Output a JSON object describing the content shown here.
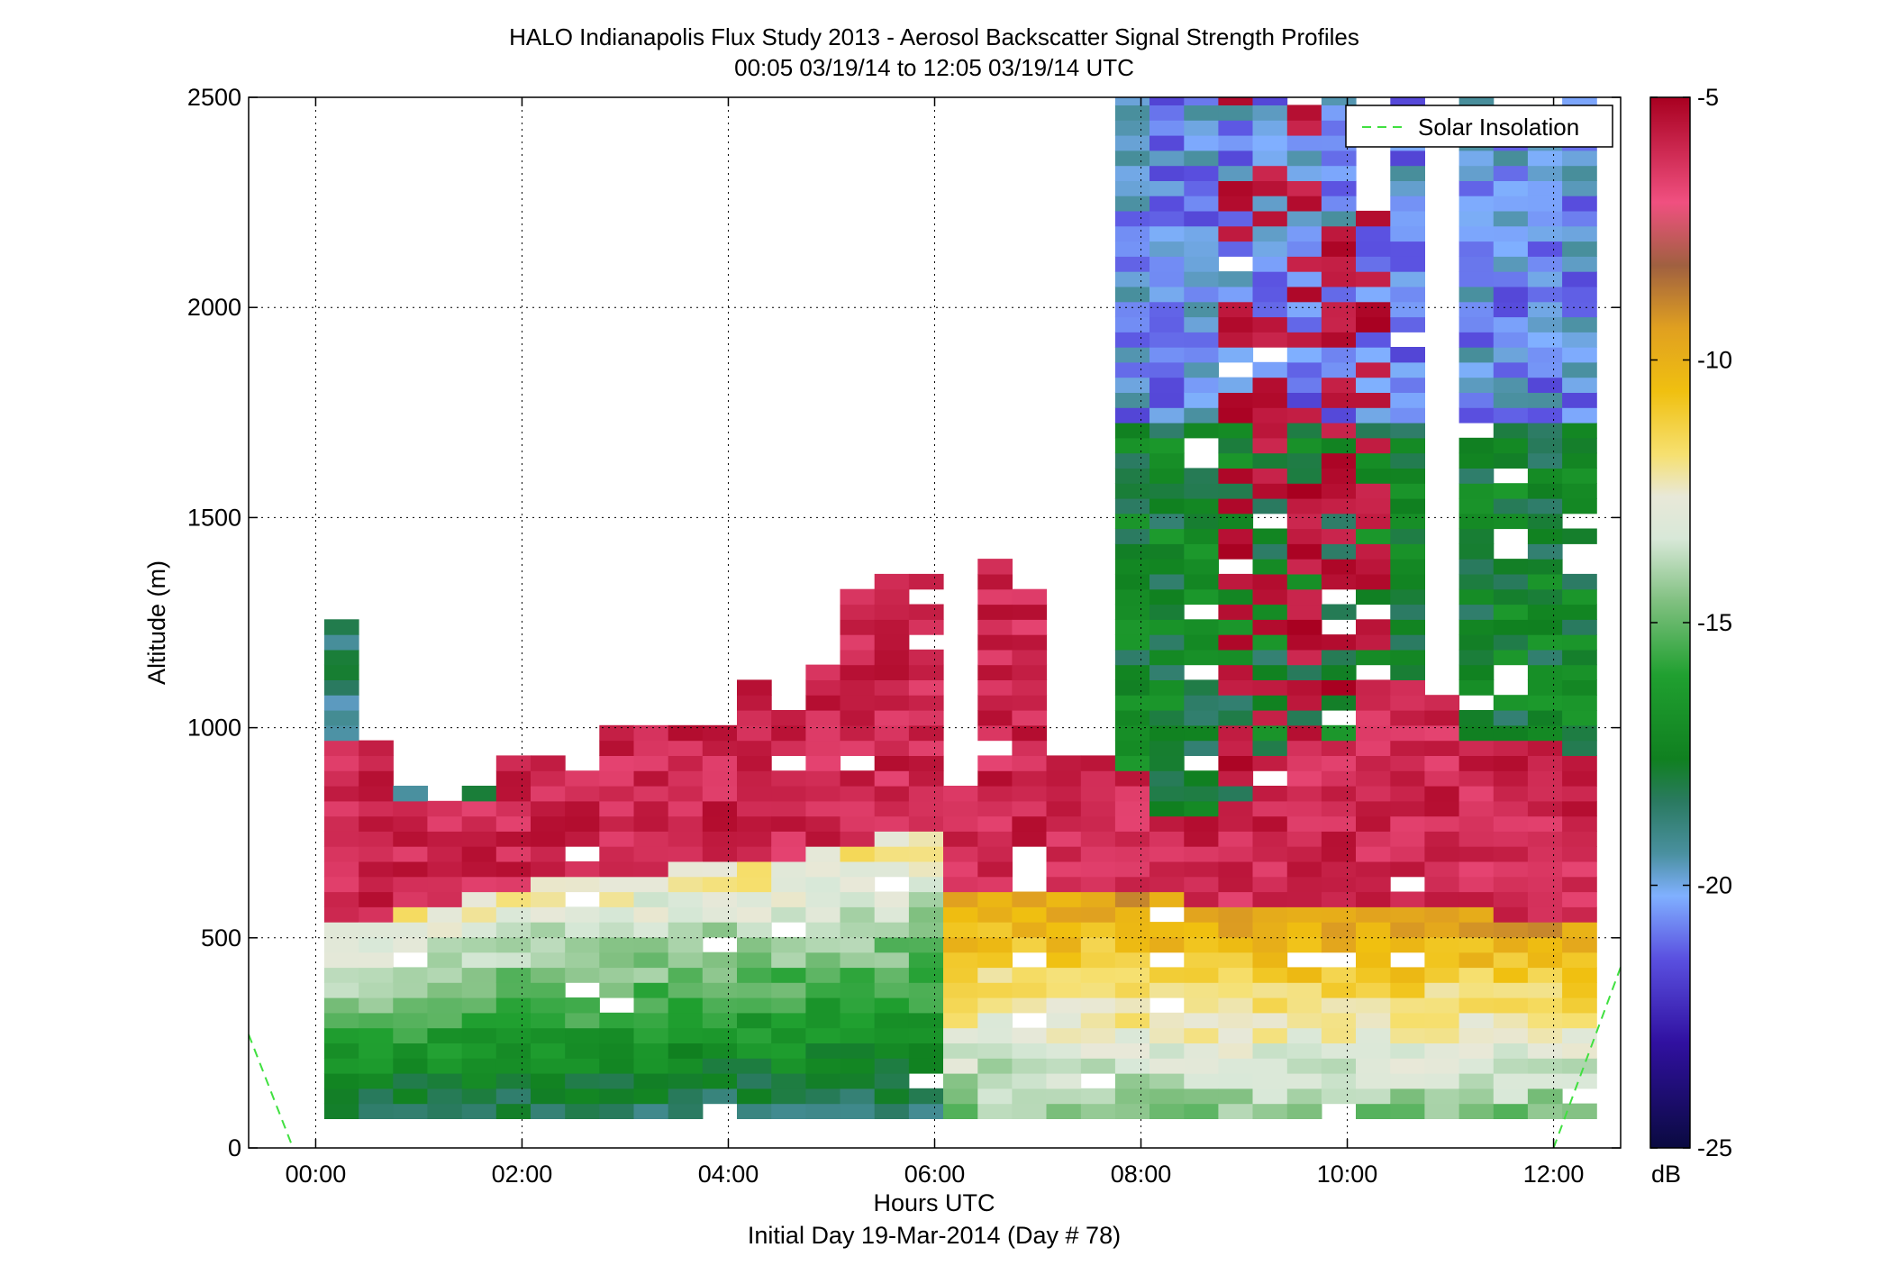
{
  "chart_data": {
    "type": "heatmap",
    "title": "HALO Indianapolis Flux Study 2013 - Aerosol Backscatter Signal Strength Profiles",
    "subtitle": "00:05 03/19/14 to 12:05 03/19/14  UTC",
    "xlabel": "Hours UTC",
    "xlabel_sub": "Initial Day 19-Mar-2014 (Day # 78)",
    "ylabel": "Altitude (m)",
    "xlim": [
      -0.65,
      12.65
    ],
    "ylim": [
      0,
      2500
    ],
    "x_ticks": [
      0,
      2,
      4,
      6,
      8,
      10,
      12
    ],
    "x_tick_labels": [
      "00:00",
      "02:00",
      "04:00",
      "06:00",
      "08:00",
      "10:00",
      "12:00"
    ],
    "y_ticks": [
      0,
      500,
      1000,
      1500,
      2000,
      2500
    ],
    "y_tick_labels": [
      "0",
      "500",
      "1000",
      "1500",
      "2000",
      "2500"
    ],
    "grid": true,
    "colorbar": {
      "label": "dB",
      "min": -25,
      "max": -5,
      "ticks": [
        -5,
        -10,
        -15,
        -20,
        -25
      ],
      "tick_labels": [
        "-5",
        "-10",
        "-15",
        "-20",
        "-25"
      ]
    },
    "legend": {
      "position": "top-right",
      "entries": [
        "Solar Insolation"
      ]
    },
    "bin_width_hours": 0.333,
    "altitude_bin_m": 36,
    "columns": [
      {
        "time": 0.083,
        "top": 1225,
        "mix": 530,
        "aloft": 960,
        "peak": -16.4,
        "cloud": 0
      },
      {
        "time": 0.417,
        "top": 960,
        "mix": 530,
        "aloft": 960,
        "peak": -16.0,
        "cloud": 0
      },
      {
        "time": 0.75,
        "top": 840,
        "mix": 560,
        "aloft": 800,
        "peak": -14.0,
        "cloud": 1
      },
      {
        "time": 1.083,
        "top": 800,
        "mix": 560,
        "aloft": 800,
        "peak": -14.0,
        "cloud": 1
      },
      {
        "time": 1.417,
        "top": 840,
        "mix": 580,
        "aloft": 800,
        "peak": -13.5,
        "cloud": 1
      },
      {
        "time": 1.75,
        "top": 920,
        "mix": 600,
        "aloft": 920,
        "peak": -13.0,
        "cloud": 1
      },
      {
        "time": 2.083,
        "top": 920,
        "mix": 620,
        "aloft": 920,
        "peak": -13.0,
        "cloud": 1
      },
      {
        "time": 2.417,
        "top": 880,
        "mix": 620,
        "aloft": 880,
        "peak": -13.0,
        "cloud": 1
      },
      {
        "time": 2.75,
        "top": 1000,
        "mix": 640,
        "aloft": 1000,
        "peak": -13.0,
        "cloud": 1
      },
      {
        "time": 3.083,
        "top": 1000,
        "mix": 640,
        "aloft": 1000,
        "peak": -13.0,
        "cloud": 1
      },
      {
        "time": 3.417,
        "top": 990,
        "mix": 660,
        "aloft": 990,
        "peak": -13.0,
        "cloud": 1
      },
      {
        "time": 3.75,
        "top": 1000,
        "mix": 660,
        "aloft": 1000,
        "peak": -12.5,
        "cloud": 1
      },
      {
        "time": 4.083,
        "top": 1110,
        "mix": 660,
        "aloft": 1110,
        "peak": -12.5,
        "cloud": 1
      },
      {
        "time": 4.417,
        "top": 1040,
        "mix": 680,
        "aloft": 1040,
        "peak": -12.0,
        "cloud": 1
      },
      {
        "time": 4.75,
        "top": 1150,
        "mix": 700,
        "aloft": 1150,
        "peak": -12.0,
        "cloud": 1
      },
      {
        "time": 5.083,
        "top": 1300,
        "mix": 700,
        "aloft": 1300,
        "peak": -12.0,
        "cloud": 1
      },
      {
        "time": 5.417,
        "top": 1340,
        "mix": 720,
        "aloft": 1340,
        "peak": -12.0,
        "cloud": 1
      },
      {
        "time": 5.75,
        "top": 1340,
        "mix": 740,
        "aloft": 1340,
        "peak": -11.5,
        "cloud": 1
      },
      {
        "time": 6.083,
        "top": 840,
        "mix": 600,
        "aloft": 840,
        "peak": -11.0,
        "cloud": 1
      },
      {
        "time": 6.417,
        "top": 1370,
        "mix": 600,
        "aloft": 1370,
        "peak": -11.0,
        "cloud": 1
      },
      {
        "time": 6.75,
        "top": 1300,
        "mix": 600,
        "aloft": 1300,
        "peak": -11.0,
        "cloud": 1
      },
      {
        "time": 7.083,
        "top": 920,
        "mix": 600,
        "aloft": 920,
        "peak": -11.0,
        "cloud": 1
      },
      {
        "time": 7.417,
        "top": 920,
        "mix": 590,
        "aloft": 920,
        "peak": -10.5,
        "cloud": 1
      },
      {
        "time": 7.75,
        "top": 2500,
        "mix": 580,
        "aloft": 880,
        "peak": -10.5,
        "cloud": 2
      },
      {
        "time": 8.083,
        "top": 2500,
        "mix": 580,
        "aloft": 760,
        "peak": -10.5,
        "cloud": 2
      },
      {
        "time": 8.417,
        "top": 2500,
        "mix": 560,
        "aloft": 760,
        "peak": -10.0,
        "cloud": 2
      },
      {
        "time": 8.75,
        "top": 2500,
        "mix": 560,
        "aloft": 760,
        "peak": -10.0,
        "cloud": 3
      },
      {
        "time": 9.083,
        "top": 2500,
        "mix": 560,
        "aloft": 920,
        "peak": -10.0,
        "cloud": 3
      },
      {
        "time": 9.417,
        "top": 2470,
        "mix": 540,
        "aloft": 960,
        "peak": -10.0,
        "cloud": 3
      },
      {
        "time": 9.75,
        "top": 2500,
        "mix": 540,
        "aloft": 920,
        "peak": -10.0,
        "cloud": 3
      },
      {
        "time": 10.083,
        "top": 2200,
        "mix": 540,
        "aloft": 1080,
        "peak": -10.0,
        "cloud": 3
      },
      {
        "time": 10.417,
        "top": 2500,
        "mix": 540,
        "aloft": 1080,
        "peak": -10.0,
        "cloud": 2
      },
      {
        "time": 10.75,
        "top": 1110,
        "mix": 540,
        "aloft": 1080,
        "peak": -10.0,
        "cloud": 1
      },
      {
        "time": 11.083,
        "top": 2500,
        "mix": 540,
        "aloft": 960,
        "peak": -10.0,
        "cloud": 2
      },
      {
        "time": 11.417,
        "top": 2500,
        "mix": 520,
        "aloft": 960,
        "peak": -10.0,
        "cloud": 2
      },
      {
        "time": 11.75,
        "top": 2500,
        "mix": 520,
        "aloft": 960,
        "peak": -10.5,
        "cloud": 2
      },
      {
        "time": 12.083,
        "top": 2500,
        "mix": 520,
        "aloft": 920,
        "peak": -10.5,
        "cloud": 2
      }
    ]
  }
}
